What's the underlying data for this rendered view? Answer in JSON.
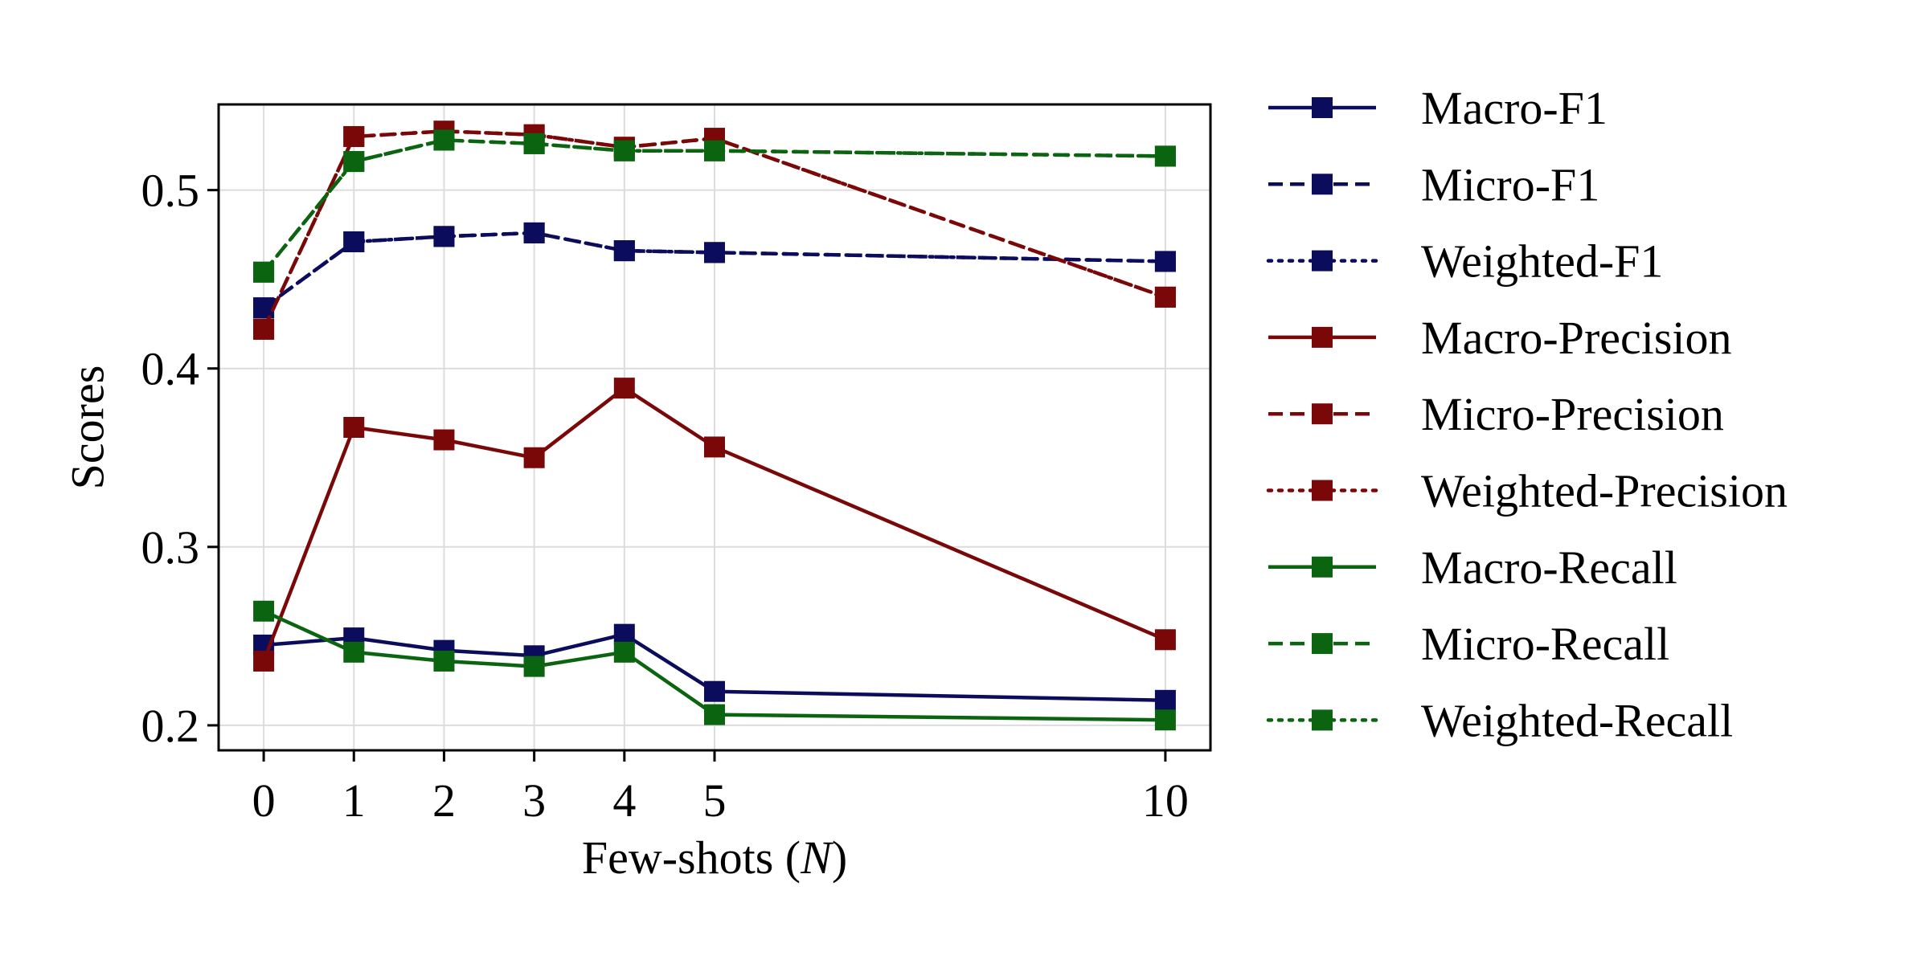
{
  "chart_data": {
    "type": "line",
    "xlabel": "Few-shots (N)",
    "xlabel_prefix": "Few-shots (",
    "xlabel_var": "N",
    "xlabel_suffix": ")",
    "ylabel": "Scores",
    "x": [
      0,
      1,
      2,
      3,
      4,
      5,
      10
    ],
    "xticks": [
      "0",
      "1",
      "2",
      "3",
      "4",
      "5",
      "10"
    ],
    "yticks": [
      0.2,
      0.3,
      0.4,
      0.5
    ],
    "ytick_labels": [
      "0.2",
      "0.3",
      "0.4",
      "0.5"
    ],
    "xlim": [
      -0.5,
      10.5
    ],
    "ylim": [
      0.186,
      0.548
    ],
    "grid": true,
    "legend_position": "outside-right",
    "series": [
      {
        "name": "Macro-F1",
        "color": "#0c0c5c",
        "dash": "solid",
        "values": [
          0.245,
          0.249,
          0.242,
          0.239,
          0.251,
          0.219,
          0.214
        ]
      },
      {
        "name": "Micro-F1",
        "color": "#0c0c5c",
        "dash": "dashed",
        "values": [
          0.434,
          0.471,
          0.474,
          0.476,
          0.466,
          0.465,
          0.46
        ]
      },
      {
        "name": "Weighted-F1",
        "color": "#0c0c5c",
        "dash": "dotted",
        "values": [
          0.434,
          0.471,
          0.474,
          0.476,
          0.466,
          0.465,
          0.46
        ]
      },
      {
        "name": "Macro-Precision",
        "color": "#7a0808",
        "dash": "solid",
        "values": [
          0.236,
          0.367,
          0.36,
          0.35,
          0.389,
          0.356,
          0.248
        ]
      },
      {
        "name": "Micro-Precision",
        "color": "#7a0808",
        "dash": "dashed",
        "values": [
          0.422,
          0.53,
          0.533,
          0.531,
          0.524,
          0.529,
          0.44
        ]
      },
      {
        "name": "Weighted-Precision",
        "color": "#7a0808",
        "dash": "dotted",
        "values": [
          0.422,
          0.53,
          0.533,
          0.531,
          0.524,
          0.529,
          0.44
        ]
      },
      {
        "name": "Macro-Recall",
        "color": "#0b6410",
        "dash": "solid",
        "values": [
          0.264,
          0.241,
          0.236,
          0.233,
          0.241,
          0.206,
          0.203
        ]
      },
      {
        "name": "Micro-Recall",
        "color": "#0b6410",
        "dash": "dashed",
        "values": [
          0.454,
          0.516,
          0.528,
          0.526,
          0.522,
          0.522,
          0.519
        ]
      },
      {
        "name": "Weighted-Recall",
        "color": "#0b6410",
        "dash": "dotted",
        "values": [
          0.454,
          0.516,
          0.528,
          0.526,
          0.522,
          0.522,
          0.519
        ]
      }
    ]
  }
}
